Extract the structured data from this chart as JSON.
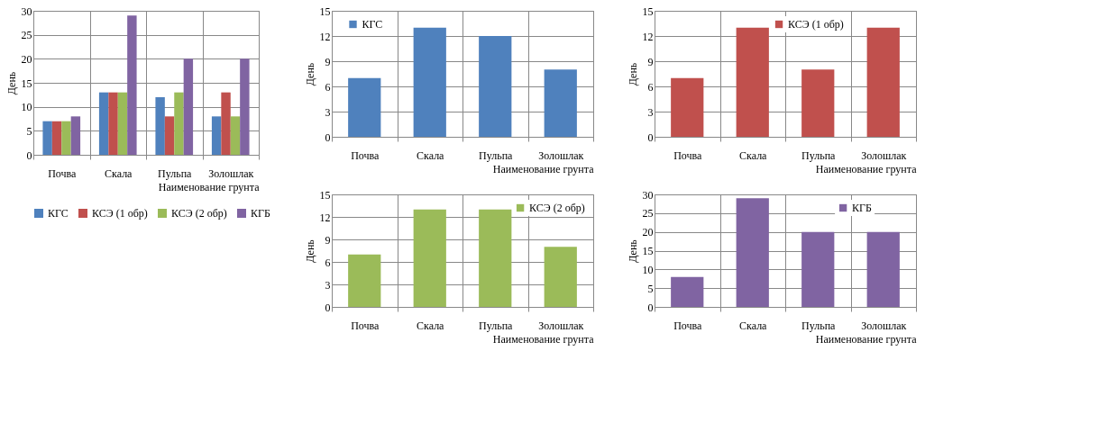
{
  "chart_data": [
    {
      "type": "bar",
      "xlabel": "Наименование грунта",
      "ylabel": "День",
      "categories": [
        "Почва",
        "Скала",
        "Пульпа",
        "Золошлак"
      ],
      "ylim": [
        0,
        30
      ],
      "yticks": [
        0,
        5,
        10,
        15,
        20,
        25,
        30
      ],
      "grid": true,
      "legend": "bottom",
      "series": [
        {
          "name": "КГС",
          "color": "#4f81bd",
          "values": [
            7,
            13,
            12,
            8
          ]
        },
        {
          "name": "КСЭ (1 обр)",
          "color": "#c0504d",
          "values": [
            7,
            13,
            8,
            13
          ]
        },
        {
          "name": "КСЭ (2 обр)",
          "color": "#9bbb59",
          "values": [
            7,
            13,
            13,
            8
          ]
        },
        {
          "name": "КГБ",
          "color": "#8064a2",
          "values": [
            8,
            29,
            20,
            20
          ]
        }
      ]
    },
    {
      "type": "bar",
      "xlabel": "Наименование грунта",
      "ylabel": "День",
      "categories": [
        "Почва",
        "Скала",
        "Пульпа",
        "Золошлак"
      ],
      "ylim": [
        0,
        15
      ],
      "yticks": [
        0,
        3,
        6,
        9,
        12,
        15
      ],
      "grid": true,
      "legend": "top left",
      "series": [
        {
          "name": "КГС",
          "color": "#4f81bd",
          "values": [
            7,
            13,
            12,
            8
          ]
        }
      ]
    },
    {
      "type": "bar",
      "xlabel": "Наименование грунта",
      "ylabel": "День",
      "categories": [
        "Почва",
        "Скала",
        "Пульпа",
        "Золошлак"
      ],
      "ylim": [
        0,
        15
      ],
      "yticks": [
        0,
        3,
        6,
        9,
        12,
        15
      ],
      "grid": true,
      "legend": "top",
      "series": [
        {
          "name": "КСЭ (1 обр)",
          "color": "#c0504d",
          "values": [
            7,
            13,
            8,
            13
          ]
        }
      ]
    },
    {
      "type": "bar",
      "xlabel": "Наименование грунта",
      "ylabel": "День",
      "categories": [
        "Почва",
        "Скала",
        "Пульпа",
        "Золошлак"
      ],
      "ylim": [
        0,
        15
      ],
      "yticks": [
        0,
        3,
        6,
        9,
        12,
        15
      ],
      "grid": true,
      "legend": "top right",
      "series": [
        {
          "name": "КСЭ (2 обр)",
          "color": "#9bbb59",
          "values": [
            7,
            13,
            13,
            8
          ]
        }
      ]
    },
    {
      "type": "bar",
      "xlabel": "Наименование грунта",
      "ylabel": "День",
      "categories": [
        "Почва",
        "Скала",
        "Пульпа",
        "Золошлак"
      ],
      "ylim": [
        0,
        30
      ],
      "yticks": [
        0,
        5,
        10,
        15,
        20,
        25,
        30
      ],
      "grid": true,
      "legend": "top right",
      "series": [
        {
          "name": "КГБ",
          "color": "#8064a2",
          "values": [
            8,
            29,
            20,
            20
          ]
        }
      ]
    }
  ]
}
